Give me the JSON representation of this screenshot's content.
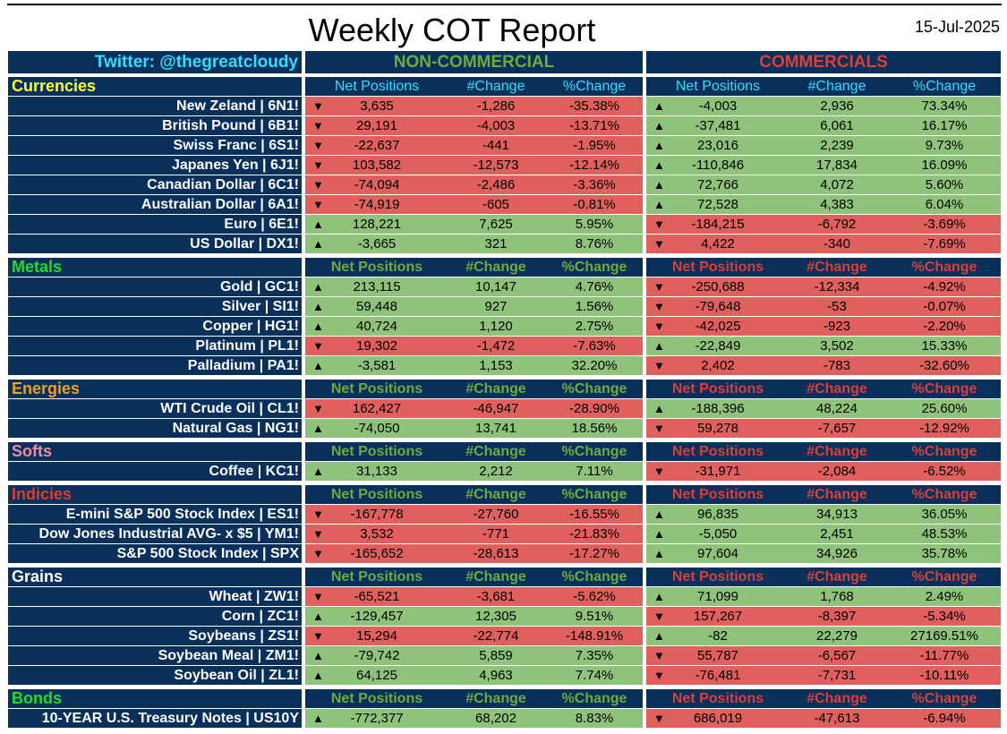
{
  "title": "Weekly COT Report",
  "date": "15-Jul-2025",
  "twitter": "Twitter: @thegreatcloudy",
  "group_noncommercial": "NON-COMMERCIAL",
  "group_commercials": "COMMERCIALS",
  "colors": {
    "header_bg": "#08305a",
    "positive": "#8fc27a",
    "negative": "#e0605d",
    "twitter": "#33ddff",
    "noncommercial_title": "#6faa3f",
    "commercials_title": "#d9403a"
  },
  "sections": [
    {
      "name": "Currencies",
      "name_color": "#ffff33",
      "col_headers": [
        "Net Positions",
        "#Change",
        "%Change"
      ],
      "nc_header_color": "#33ddff",
      "cm_header_color": "#33ddff",
      "rows": [
        {
          "label": "New Zeland | 6N1!",
          "nc": {
            "dir": "down",
            "net": "3,635",
            "chg": "-1,286",
            "pct": "-35.38%"
          },
          "cm": {
            "dir": "up",
            "net": "-4,003",
            "chg": "2,936",
            "pct": "73.34%"
          }
        },
        {
          "label": "British Pound | 6B1!",
          "nc": {
            "dir": "down",
            "net": "29,191",
            "chg": "-4,003",
            "pct": "-13.71%"
          },
          "cm": {
            "dir": "up",
            "net": "-37,481",
            "chg": "6,061",
            "pct": "16.17%"
          }
        },
        {
          "label": "Swiss Franc | 6S1!",
          "nc": {
            "dir": "down",
            "net": "-22,637",
            "chg": "-441",
            "pct": "-1.95%"
          },
          "cm": {
            "dir": "up",
            "net": "23,016",
            "chg": "2,239",
            "pct": "9.73%"
          }
        },
        {
          "label": "Japanes Yen | 6J1!",
          "nc": {
            "dir": "down",
            "net": "103,582",
            "chg": "-12,573",
            "pct": "-12.14%"
          },
          "cm": {
            "dir": "up",
            "net": "-110,846",
            "chg": "17,834",
            "pct": "16.09%"
          }
        },
        {
          "label": "Canadian Dollar | 6C1!",
          "nc": {
            "dir": "down",
            "net": "-74,094",
            "chg": "-2,486",
            "pct": "-3.36%"
          },
          "cm": {
            "dir": "up",
            "net": "72,766",
            "chg": "4,072",
            "pct": "5.60%"
          }
        },
        {
          "label": "Australian Dollar | 6A1!",
          "nc": {
            "dir": "down",
            "net": "-74,919",
            "chg": "-605",
            "pct": "-0.81%"
          },
          "cm": {
            "dir": "up",
            "net": "72,528",
            "chg": "4,383",
            "pct": "6.04%"
          }
        },
        {
          "label": "Euro | 6E1!",
          "nc": {
            "dir": "up",
            "net": "128,221",
            "chg": "7,625",
            "pct": "5.95%"
          },
          "cm": {
            "dir": "down",
            "net": "-184,215",
            "chg": "-6,792",
            "pct": "-3.69%"
          }
        },
        {
          "label": "US Dollar | DX1!",
          "nc": {
            "dir": "up",
            "net": "-3,665",
            "chg": "321",
            "pct": "8.76%"
          },
          "cm": {
            "dir": "down",
            "net": "4,422",
            "chg": "-340",
            "pct": "-7.69%"
          }
        }
      ]
    },
    {
      "name": "Metals",
      "name_color": "#22dd22",
      "col_headers": [
        "Net Positions",
        "#Change",
        "%Change"
      ],
      "nc_header_color": "#6faa3f",
      "cm_header_color": "#d9403a",
      "rows": [
        {
          "label": "Gold | GC1!",
          "nc": {
            "dir": "up",
            "net": "213,115",
            "chg": "10,147",
            "pct": "4.76%"
          },
          "cm": {
            "dir": "down",
            "net": "-250,688",
            "chg": "-12,334",
            "pct": "-4.92%"
          }
        },
        {
          "label": "Silver | SI1!",
          "nc": {
            "dir": "up",
            "net": "59,448",
            "chg": "927",
            "pct": "1.56%"
          },
          "cm": {
            "dir": "down",
            "net": "-79,648",
            "chg": "-53",
            "pct": "-0.07%"
          }
        },
        {
          "label": "Copper | HG1!",
          "nc": {
            "dir": "up",
            "net": "40,724",
            "chg": "1,120",
            "pct": "2.75%"
          },
          "cm": {
            "dir": "down",
            "net": "-42,025",
            "chg": "-923",
            "pct": "-2.20%"
          }
        },
        {
          "label": "Platinum | PL1!",
          "nc": {
            "dir": "down",
            "net": "19,302",
            "chg": "-1,472",
            "pct": "-7.63%"
          },
          "cm": {
            "dir": "up",
            "net": "-22,849",
            "chg": "3,502",
            "pct": "15.33%"
          }
        },
        {
          "label": "Palladium | PA1!",
          "nc": {
            "dir": "up",
            "net": "-3,581",
            "chg": "1,153",
            "pct": "32.20%"
          },
          "cm": {
            "dir": "down",
            "net": "2,402",
            "chg": "-783",
            "pct": "-32.60%"
          }
        }
      ]
    },
    {
      "name": "Energies",
      "name_color": "#f0a020",
      "col_headers": [
        "Net Positions",
        "#Change",
        "%Change"
      ],
      "nc_header_color": "#6faa3f",
      "cm_header_color": "#d9403a",
      "rows": [
        {
          "label": "WTI Crude Oil | CL1!",
          "nc": {
            "dir": "down",
            "net": "162,427",
            "chg": "-46,947",
            "pct": "-28.90%"
          },
          "cm": {
            "dir": "up",
            "net": "-188,396",
            "chg": "48,224",
            "pct": "25.60%"
          }
        },
        {
          "label": "Natural Gas | NG1!",
          "nc": {
            "dir": "up",
            "net": "-74,050",
            "chg": "13,741",
            "pct": "18.56%"
          },
          "cm": {
            "dir": "down",
            "net": "59,278",
            "chg": "-7,657",
            "pct": "-12.92%"
          }
        }
      ]
    },
    {
      "name": "Softs",
      "name_color": "#f28aa0",
      "col_headers": [
        "Net Positions",
        "#Change",
        "%Change"
      ],
      "nc_header_color": "#6faa3f",
      "cm_header_color": "#d9403a",
      "rows": [
        {
          "label": "Coffee | KC1!",
          "nc": {
            "dir": "up",
            "net": "31,133",
            "chg": "2,212",
            "pct": "7.11%"
          },
          "cm": {
            "dir": "down",
            "net": "-31,971",
            "chg": "-2,084",
            "pct": "-6.52%"
          }
        }
      ]
    },
    {
      "name": "Indicies",
      "name_color": "#e03b2e",
      "col_headers": [
        "Net Positions",
        "#Change",
        "%Change"
      ],
      "nc_header_color": "#6faa3f",
      "cm_header_color": "#d9403a",
      "rows": [
        {
          "label": "E-mini S&P 500 Stock Index | ES1!",
          "nc": {
            "dir": "down",
            "net": "-167,778",
            "chg": "-27,760",
            "pct": "-16.55%"
          },
          "cm": {
            "dir": "up",
            "net": "96,835",
            "chg": "34,913",
            "pct": "36.05%"
          }
        },
        {
          "label": "Dow Jones Industrial AVG- x $5 | YM1!",
          "nc": {
            "dir": "down",
            "net": "3,532",
            "chg": "-771",
            "pct": "-21.83%"
          },
          "cm": {
            "dir": "up",
            "net": "-5,050",
            "chg": "2,451",
            "pct": "48.53%"
          }
        },
        {
          "label": "S&P 500 Stock Index | SPX",
          "nc": {
            "dir": "down",
            "net": "-165,652",
            "chg": "-28,613",
            "pct": "-17.27%"
          },
          "cm": {
            "dir": "up",
            "net": "97,604",
            "chg": "34,926",
            "pct": "35.78%"
          }
        }
      ]
    },
    {
      "name": "Grains",
      "name_color": "#ffffff",
      "col_headers": [
        "Net Positions",
        "#Change",
        "%Change"
      ],
      "nc_header_color": "#6faa3f",
      "cm_header_color": "#d9403a",
      "rows": [
        {
          "label": "Wheat | ZW1!",
          "nc": {
            "dir": "down",
            "net": "-65,521",
            "chg": "-3,681",
            "pct": "-5.62%"
          },
          "cm": {
            "dir": "up",
            "net": "71,099",
            "chg": "1,768",
            "pct": "2.49%"
          }
        },
        {
          "label": "Corn | ZC1!",
          "nc": {
            "dir": "up",
            "net": "-129,457",
            "chg": "12,305",
            "pct": "9.51%"
          },
          "cm": {
            "dir": "down",
            "net": "157,267",
            "chg": "-8,397",
            "pct": "-5.34%"
          }
        },
        {
          "label": "Soybeans | ZS1!",
          "nc": {
            "dir": "down",
            "net": "15,294",
            "chg": "-22,774",
            "pct": "-148.91%"
          },
          "cm": {
            "dir": "up",
            "net": "-82",
            "chg": "22,279",
            "pct": "27169.51%"
          }
        },
        {
          "label": "Soybean Meal | ZM1!",
          "nc": {
            "dir": "up",
            "net": "-79,742",
            "chg": "5,859",
            "pct": "7.35%"
          },
          "cm": {
            "dir": "down",
            "net": "55,787",
            "chg": "-6,567",
            "pct": "-11.77%"
          }
        },
        {
          "label": "Soybean Oil | ZL1!",
          "nc": {
            "dir": "up",
            "net": "64,125",
            "chg": "4,963",
            "pct": "7.74%"
          },
          "cm": {
            "dir": "down",
            "net": "-76,481",
            "chg": "-7,731",
            "pct": "-10.11%"
          }
        }
      ]
    },
    {
      "name": "Bonds",
      "name_color": "#22dd22",
      "col_headers": [
        "Net Positions",
        "#Change",
        "%Change"
      ],
      "nc_header_color": "#6faa3f",
      "cm_header_color": "#d9403a",
      "rows": [
        {
          "label": "10-YEAR U.S. Treasury Notes | US10Y",
          "nc": {
            "dir": "up",
            "net": "-772,377",
            "chg": "68,202",
            "pct": "8.83%"
          },
          "cm": {
            "dir": "down",
            "net": "686,019",
            "chg": "-47,613",
            "pct": "-6.94%"
          }
        }
      ]
    }
  ]
}
